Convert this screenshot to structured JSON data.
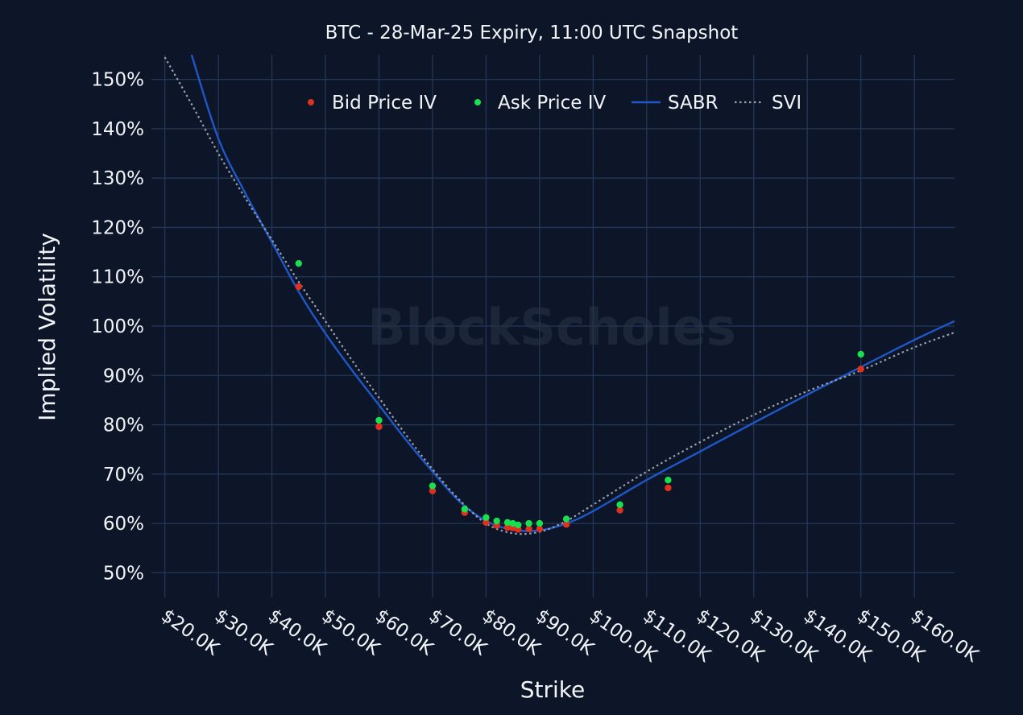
{
  "chart_data": {
    "type": "scatter",
    "title": "BTC - 28-Mar-25 Expiry, 11:00 UTC Snapshot",
    "xlabel": "Strike",
    "ylabel": "Implied Volatility",
    "xlim": [
      17500,
      167500
    ],
    "ylim": [
      45,
      155
    ],
    "x_ticks": [
      20000,
      30000,
      40000,
      50000,
      60000,
      70000,
      80000,
      90000,
      100000,
      110000,
      120000,
      130000,
      140000,
      150000,
      160000
    ],
    "x_tick_labels": [
      "$20.0K",
      "$30.0K",
      "$40.0K",
      "$50.0K",
      "$60.0K",
      "$70.0K",
      "$80.0K",
      "$90.0K",
      "$100.0K",
      "$110.0K",
      "$120.0K",
      "$130.0K",
      "$140.0K",
      "$150.0K",
      "$160.0K"
    ],
    "y_ticks": [
      50,
      60,
      70,
      80,
      90,
      100,
      110,
      120,
      130,
      140,
      150
    ],
    "y_tick_labels": [
      "50%",
      "60%",
      "70%",
      "80%",
      "90%",
      "100%",
      "110%",
      "120%",
      "130%",
      "140%",
      "150%"
    ],
    "grid": true,
    "legend_position": "top-center",
    "watermark": "BlockScholes",
    "series": [
      {
        "name": "Bid Price IV",
        "kind": "scatter",
        "color": "#e0301e",
        "x": [
          45000,
          60000,
          70000,
          76000,
          80000,
          82000,
          84000,
          85000,
          86000,
          88000,
          90000,
          95000,
          105000,
          114000,
          150000
        ],
        "y": [
          108,
          79.6,
          66.6,
          62.2,
          60.2,
          59.6,
          59.2,
          59.1,
          58.8,
          58.9,
          58.9,
          59.8,
          62.7,
          67.2,
          91.3
        ]
      },
      {
        "name": "Ask Price IV",
        "kind": "scatter",
        "color": "#19e04e",
        "x": [
          45000,
          60000,
          70000,
          76000,
          80000,
          82000,
          84000,
          85000,
          86000,
          88000,
          90000,
          95000,
          105000,
          114000,
          150000
        ],
        "y": [
          112.7,
          80.9,
          67.6,
          62.9,
          61.2,
          60.5,
          60.2,
          60,
          59.7,
          60,
          60,
          60.9,
          63.8,
          68.8,
          94.3
        ]
      },
      {
        "name": "SABR",
        "kind": "line",
        "color": "#1f57c8",
        "x": [
          25000,
          30000,
          35000,
          40000,
          45000,
          50000,
          55000,
          60000,
          65000,
          70000,
          75000,
          80000,
          85000,
          90000,
          95000,
          100000,
          110000,
          120000,
          130000,
          140000,
          150000,
          160000,
          167500
        ],
        "y": [
          155,
          138,
          127,
          117,
          107,
          98.5,
          91,
          84,
          77,
          70.5,
          64.5,
          60.5,
          58.7,
          58.6,
          60,
          62.5,
          68.8,
          74.6,
          80.4,
          86.1,
          91.7,
          97.2,
          101
        ]
      },
      {
        "name": "SVI",
        "kind": "dotted-line",
        "color": "#9aa0aa",
        "x": [
          20000,
          25000,
          30000,
          35000,
          40000,
          45000,
          50000,
          55000,
          60000,
          65000,
          70000,
          75000,
          80000,
          85000,
          90000,
          95000,
          100000,
          110000,
          120000,
          130000,
          140000,
          150000,
          160000,
          167500
        ],
        "y": [
          154.5,
          145,
          135,
          126,
          117.5,
          109,
          101,
          93,
          85.5,
          78,
          71,
          64.8,
          60,
          58,
          58.3,
          60.5,
          63.8,
          70.5,
          76.5,
          82,
          86.8,
          91,
          95.7,
          98.7
        ]
      }
    ]
  }
}
